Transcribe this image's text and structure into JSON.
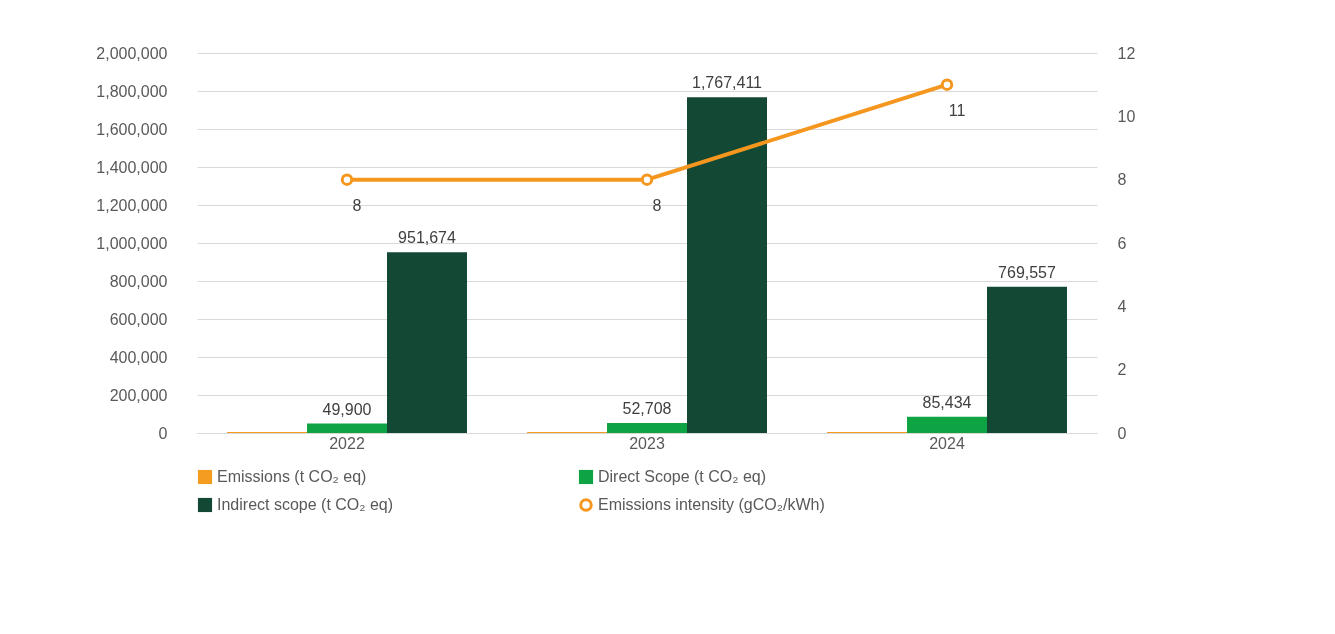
{
  "chart_data": {
    "type": "bar",
    "categories": [
      "2022",
      "2023",
      "2024"
    ],
    "series": [
      {
        "name": "Emissions (t CO₂ eq)",
        "color": "#f39c1f",
        "values": [
          5000,
          5000,
          5000
        ]
      },
      {
        "name": "Direct Scope (t CO₂ eq)",
        "color": "#0ea444",
        "values": [
          49900,
          52708,
          85434
        ],
        "value_labels": [
          "49,900",
          "52,708",
          "85,434"
        ]
      },
      {
        "name": "Indirect scope (t CO₂ eq)",
        "color": "#134834",
        "values": [
          951674,
          1767411,
          769557
        ],
        "value_labels": [
          "951,674",
          "1,767,411",
          "769,557"
        ]
      },
      {
        "name": "Emissions intensity (gCO₂/kWh)",
        "type": "line",
        "axis": "y2",
        "color": "#f5961e",
        "values": [
          8,
          8,
          11
        ],
        "value_labels": [
          "8",
          "8",
          "11"
        ]
      }
    ],
    "ylim": [
      0,
      2000000
    ],
    "yticks": [
      0,
      {
        "value": 200000,
        "label": "200,000"
      },
      {
        "value": 400000,
        "label": "400,000"
      },
      {
        "value": 600000,
        "label": "600,000"
      },
      {
        "value": 800000,
        "label": "800,000"
      },
      {
        "value": 1000000,
        "label": "1,000,000"
      },
      {
        "value": 1200000,
        "label": "1,200,000"
      },
      {
        "value": 1400000,
        "label": "1,400,000"
      },
      {
        "value": 1600000,
        "label": "1,600,000"
      },
      {
        "value": 1800000,
        "label": "1,800,000"
      },
      {
        "value": 2000000,
        "label": "2,000,000"
      }
    ],
    "y2lim": [
      0,
      12
    ],
    "y2ticks": [
      0,
      2,
      4,
      6,
      8,
      10,
      12
    ],
    "grid": "y",
    "legend": "bottom",
    "marker": "circle",
    "line_style": "solid"
  }
}
